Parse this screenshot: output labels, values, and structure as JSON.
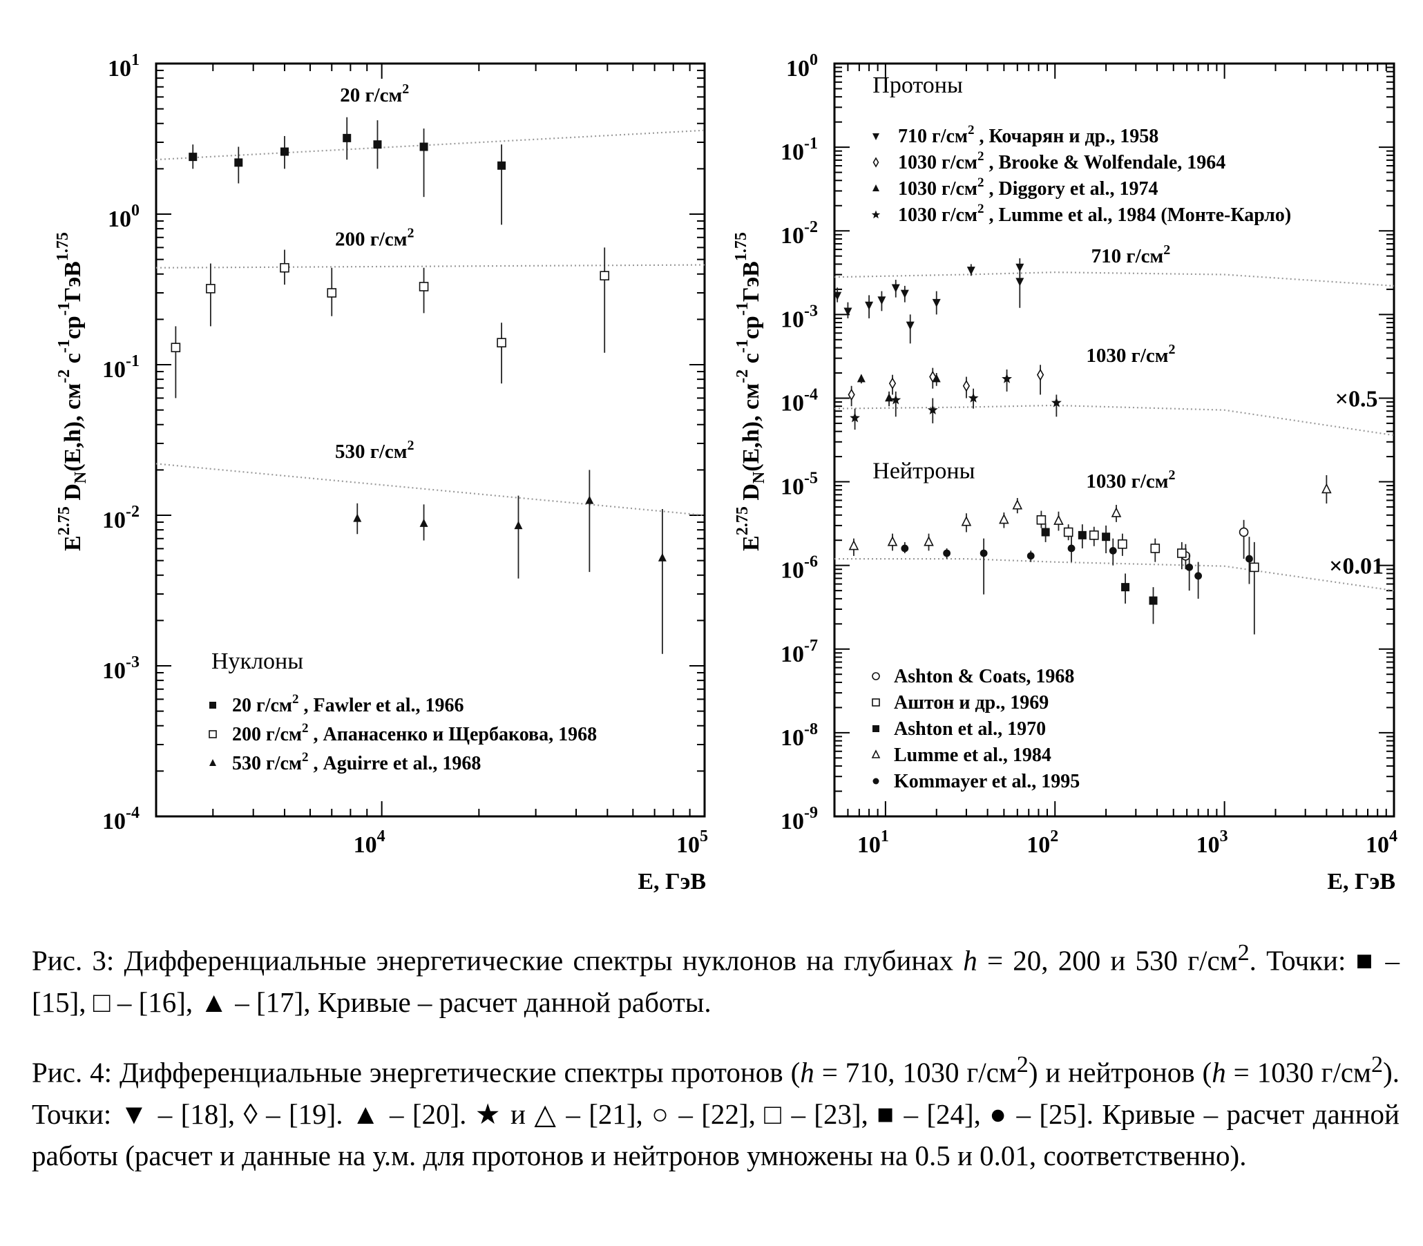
{
  "chart_data": [
    {
      "type": "scatter",
      "xlabel": "E, ГэВ",
      "ylabel_base": "E",
      "ylabel_exp": "2.75",
      "ylabel_mid": " D",
      "ylabel_sub": "N",
      "ylabel_tail": "(E,h),  см",
      "ylabel_u1": "-2",
      "ylabel_u2": " с",
      "ylabel_u3": "-1",
      "ylabel_u4": "ср",
      "ylabel_u5": "-1",
      "ylabel_u6": "ГэВ",
      "ylabel_u7": "1.75",
      "x_log": true,
      "y_log": true,
      "xlim": [
        2000,
        100000
      ],
      "ylim": [
        0.0001,
        10
      ],
      "x_ticks": [
        {
          "base": "10",
          "exp": "4",
          "value": 10000
        },
        {
          "base": "10",
          "exp": "5",
          "value": 100000
        }
      ],
      "y_ticks": [
        {
          "base": "10",
          "exp": "1",
          "value": 10
        },
        {
          "base": "10",
          "exp": "0",
          "value": 1
        },
        {
          "base": "10",
          "exp": "-1",
          "value": 0.1
        },
        {
          "base": "10",
          "exp": "-2",
          "value": 0.01
        },
        {
          "base": "10",
          "exp": "-3",
          "value": 0.001
        },
        {
          "base": "10",
          "exp": "-4",
          "value": 0.0001
        }
      ],
      "annotations": [
        {
          "text": "20 г/см",
          "sup": "2",
          "x": 9500,
          "y": 5.6
        },
        {
          "text": "200 г/см",
          "sup": "2",
          "x": 9500,
          "y": 0.62
        },
        {
          "text": "530 г/см",
          "sup": "2",
          "x": 9500,
          "y": 0.024
        }
      ],
      "legend_title": "Нуклоны",
      "legend": [
        {
          "marker": "square",
          "text_pre": "  20 г/см",
          "sup": "2",
          "text_post": " , Fawler et al., 1966"
        },
        {
          "marker": "open-square",
          "text_pre": "200 г/см",
          "sup": "2",
          "text_post": " , Апанасенко и Щербакова, 1968"
        },
        {
          "marker": "triangle",
          "text_pre": "530 г/см",
          "sup": "2",
          "text_post": " , Aguirre et al., 1968"
        }
      ],
      "curves": [
        {
          "name": "20 г/см2",
          "x": [
            2000,
            100000
          ],
          "y": [
            2.3,
            3.6
          ]
        },
        {
          "name": "200 г/см2",
          "x": [
            2000,
            100000
          ],
          "y": [
            0.44,
            0.46
          ]
        },
        {
          "name": "530 г/см2",
          "x": [
            2000,
            100000
          ],
          "y": [
            0.022,
            0.01
          ]
        }
      ],
      "series": [
        {
          "name": "20 г/см2, Fawler et al., 1966",
          "marker": "square",
          "points": [
            [
              2600,
              2.4,
              2.0,
              2.9
            ],
            [
              3600,
              2.2,
              1.6,
              2.8
            ],
            [
              5000,
              2.6,
              2.0,
              3.3
            ],
            [
              7800,
              3.2,
              2.3,
              4.4
            ],
            [
              9700,
              2.9,
              2.0,
              4.2
            ],
            [
              13500,
              2.8,
              1.3,
              3.7
            ],
            [
              23500,
              2.1,
              0.85,
              2.9
            ]
          ]
        },
        {
          "name": "200 г/см2, Апанасенко и Щербакова, 1968",
          "marker": "open-square",
          "points": [
            [
              2300,
              0.13,
              0.06,
              0.18
            ],
            [
              2950,
              0.32,
              0.18,
              0.47
            ],
            [
              5000,
              0.44,
              0.34,
              0.58
            ],
            [
              7000,
              0.3,
              0.21,
              0.44
            ],
            [
              13500,
              0.33,
              0.22,
              0.44
            ],
            [
              23500,
              0.14,
              0.075,
              0.19
            ],
            [
              49000,
              0.39,
              0.12,
              0.6
            ]
          ]
        },
        {
          "name": "530 г/см2, Aguirre et al., 1968",
          "marker": "triangle",
          "points": [
            [
              8400,
              0.0095,
              0.0075,
              0.012
            ],
            [
              13500,
              0.0088,
              0.0068,
              0.0118
            ],
            [
              26500,
              0.0085,
              0.0038,
              0.0135
            ],
            [
              44000,
              0.0125,
              0.0042,
              0.02
            ],
            [
              74000,
              0.0052,
              0.0012,
              0.011
            ]
          ]
        }
      ]
    },
    {
      "type": "scatter",
      "xlabel": "E, ГэВ",
      "ylabel_base": "E",
      "ylabel_exp": "2.75",
      "ylabel_mid": " D",
      "ylabel_sub": "N",
      "ylabel_tail": "(E,h),  см",
      "ylabel_u1": "-2",
      "ylabel_u2": " с",
      "ylabel_u3": "-1",
      "ylabel_u4": "ср",
      "ylabel_u5": "-1",
      "ylabel_u6": "ГэВ",
      "ylabel_u7": "1.75",
      "x_log": true,
      "y_log": true,
      "xlim": [
        5,
        10000
      ],
      "ylim": [
        1e-09,
        1
      ],
      "x_ticks": [
        {
          "base": "10",
          "exp": "1",
          "value": 10
        },
        {
          "base": "10",
          "exp": "2",
          "value": 100
        },
        {
          "base": "10",
          "exp": "3",
          "value": 1000
        },
        {
          "base": "10",
          "exp": "4",
          "value": 10000
        }
      ],
      "y_ticks": [
        {
          "base": "10",
          "exp": "0",
          "value": 1
        },
        {
          "base": "10",
          "exp": "-1",
          "value": 0.1
        },
        {
          "base": "10",
          "exp": "-2",
          "value": 0.01
        },
        {
          "base": "10",
          "exp": "-3",
          "value": 0.001
        },
        {
          "base": "10",
          "exp": "-4",
          "value": 0.0001
        },
        {
          "base": "10",
          "exp": "-5",
          "value": 1e-05
        },
        {
          "base": "10",
          "exp": "-6",
          "value": 1e-06
        },
        {
          "base": "10",
          "exp": "-7",
          "value": 1e-07
        },
        {
          "base": "10",
          "exp": "-8",
          "value": 1e-08
        },
        {
          "base": "10",
          "exp": "-9",
          "value": 1e-09
        }
      ],
      "annotations": [
        {
          "text": "710 г/см",
          "sup": "2",
          "x": 280,
          "y": 0.0042
        },
        {
          "text": "1030 г/см",
          "sup": "2",
          "x": 280,
          "y": 0.00027
        },
        {
          "text": "1030 г/см",
          "sup": "2",
          "x": 280,
          "y": 8.5e-06
        }
      ],
      "big_annotations": [
        {
          "text": "×0.5",
          "x": 6000,
          "y": 0.0001
        },
        {
          "text": "×0.01",
          "x": 6000,
          "y": 1e-06
        }
      ],
      "section_labels": [
        {
          "text": "Протоны",
          "x": 8.4,
          "y": 0.45
        },
        {
          "text": "Нейтроны",
          "x": 8.4,
          "y": 1.1e-05
        }
      ],
      "legend_protons": [
        {
          "marker": "down-triangle",
          "text_pre": "710 г/см",
          "sup": "2",
          "text_post": " , Кочарян и др., 1958"
        },
        {
          "marker": "diamond",
          "text_pre": "1030 г/см",
          "sup": "2",
          "text_post": " , Brooke & Wolfendale, 1964"
        },
        {
          "marker": "triangle",
          "text_pre": "1030 г/см",
          "sup": "2",
          "text_post": " , Diggory et al., 1974"
        },
        {
          "marker": "star",
          "text_pre": "1030 г/см",
          "sup": "2",
          "text_post": " , Lumme et al., 1984 (Монте-Карло)"
        }
      ],
      "legend_neutrons": [
        {
          "marker": "open-circle",
          "text": "Ashton & Coats, 1968"
        },
        {
          "marker": "open-square",
          "text": "Аштон и др., 1969"
        },
        {
          "marker": "square",
          "text": "Ashton et al., 1970"
        },
        {
          "marker": "open-triangle",
          "text": "Lumme et al., 1984"
        },
        {
          "marker": "dot",
          "text": "Kommayer et al., 1995"
        }
      ],
      "curves": [
        {
          "name": "710 г/см2",
          "x": [
            5,
            30,
            100,
            1000,
            10000
          ],
          "y": [
            0.0028,
            0.003,
            0.0032,
            0.003,
            0.0022
          ]
        },
        {
          "name": "1030 г/см2 протоны ×0.5",
          "x": [
            5,
            30,
            100,
            1000,
            10000
          ],
          "y": [
            7.5e-05,
            7.8e-05,
            8.2e-05,
            7.2e-05,
            3.6e-05
          ]
        },
        {
          "name": "1030 г/см2 нейтроны ×0.01",
          "x": [
            5,
            30,
            100,
            1000,
            10000
          ],
          "y": [
            1.2e-06,
            1.2e-06,
            1.1e-06,
            9.8e-07,
            5e-07
          ]
        }
      ],
      "series": [
        {
          "name": "710 г/см2, Кочарян и др., 1958",
          "marker": "down-triangle",
          "points": [
            [
              5.2,
              0.0017,
              0.0014,
              0.0021
            ],
            [
              6,
              0.0011,
              0.0009,
              0.0014
            ],
            [
              8,
              0.0013,
              0.0009,
              0.0017
            ],
            [
              9.5,
              0.0015,
              0.0011,
              0.0019
            ],
            [
              11.5,
              0.0021,
              0.0016,
              0.0026
            ],
            [
              13,
              0.0018,
              0.0014,
              0.0022
            ],
            [
              14,
              0.00075,
              0.00045,
              0.001
            ],
            [
              20,
              0.0014,
              0.001,
              0.0019
            ],
            [
              32,
              0.0034,
              0.0029,
              0.004
            ],
            [
              62,
              0.0025,
              0.0012,
              0.0032
            ],
            [
              62,
              0.0037,
              0.0028,
              0.0047
            ]
          ]
        },
        {
          "name": "1030 г/см2, Brooke & Wolfendale, 1964",
          "marker": "diamond",
          "points": [
            [
              6.3,
              0.00011,
              8e-05,
              0.00014
            ],
            [
              11,
              0.00015,
              0.00011,
              0.00019
            ],
            [
              19,
              0.00018,
              0.00013,
              0.00023
            ],
            [
              30,
              0.00014,
              0.0001,
              0.00018
            ],
            [
              82,
              0.00019,
              0.00011,
              0.00025
            ]
          ]
        },
        {
          "name": "1030 г/см2, Diggory et al., 1974",
          "marker": "triangle",
          "points": [
            [
              7.2,
              0.00017,
              0.00015,
              0.00019
            ],
            [
              10.5,
              0.0001,
              8e-05,
              0.00012
            ],
            [
              20,
              0.00017,
              0.00014,
              0.0002
            ]
          ]
        },
        {
          "name": "1030 г/см2, Lumme et al., 1984 (Монте-Карло)",
          "marker": "star",
          "points": [
            [
              6.6,
              5.8e-05,
              4.2e-05,
              7.5e-05
            ],
            [
              11.5,
              9.5e-05,
              6e-05,
              0.00012
            ],
            [
              19,
              7.2e-05,
              5e-05,
              0.0001
            ],
            [
              33,
              0.0001,
              7.5e-05,
              0.00013
            ],
            [
              52,
              0.00017,
              0.00012,
              0.00022
            ],
            [
              102,
              8.8e-05,
              6e-05,
              0.00011
            ]
          ]
        },
        {
          "name": "Ashton & Coats, 1968",
          "marker": "open-circle",
          "points": [
            [
              590,
              1.3e-06,
              9e-07,
              1.8e-06
            ],
            [
              1300,
              2.5e-06,
              1.2e-06,
              3.5e-06
            ]
          ]
        },
        {
          "name": "Аштон и др., 1969",
          "marker": "open-square",
          "points": [
            [
              83,
              3.5e-06,
              2.8e-06,
              4.5e-06
            ],
            [
              120,
              2.5e-06,
              2e-06,
              3.1e-06
            ],
            [
              170,
              2.3e-06,
              1.7e-06,
              2.9e-06
            ],
            [
              250,
              1.8e-06,
              1.3e-06,
              2.4e-06
            ],
            [
              390,
              1.6e-06,
              1.1e-06,
              2.1e-06
            ],
            [
              560,
              1.4e-06,
              9e-07,
              1.9e-06
            ],
            [
              1500,
              9.5e-07,
              1.5e-07,
              1.9e-06
            ]
          ]
        },
        {
          "name": "Ashton et al., 1970",
          "marker": "square",
          "points": [
            [
              88,
              2.5e-06,
              1.9e-06,
              3.2e-06
            ],
            [
              145,
              2.3e-06,
              1.6e-06,
              3.1e-06
            ],
            [
              200,
              2.2e-06,
              1.4e-06,
              3e-06
            ],
            [
              260,
              5.5e-07,
              3.5e-07,
              8e-07
            ],
            [
              380,
              3.8e-07,
              2e-07,
              5.5e-07
            ]
          ]
        },
        {
          "name": "Lumme et al., 1984",
          "marker": "open-triangle",
          "points": [
            [
              6.5,
              1.7e-06,
              1.3e-06,
              2.1e-06
            ],
            [
              11,
              1.9e-06,
              1.5e-06,
              2.4e-06
            ],
            [
              18,
              1.9e-06,
              1.5e-06,
              2.4e-06
            ],
            [
              30,
              3.3e-06,
              2.5e-06,
              4.2e-06
            ],
            [
              50,
              3.5e-06,
              2.8e-06,
              4.3e-06
            ],
            [
              60,
              5.2e-06,
              4.2e-06,
              6.4e-06
            ],
            [
              105,
              3.4e-06,
              2.6e-06,
              4.4e-06
            ],
            [
              230,
              4.2e-06,
              3.3e-06,
              5.3e-06
            ],
            [
              4000,
              8.1e-06,
              5.5e-06,
              1.2e-05
            ]
          ]
        },
        {
          "name": "Kommayer et al., 1995",
          "marker": "dot",
          "points": [
            [
              13,
              1.6e-06,
              1.4e-06,
              1.9e-06
            ],
            [
              23,
              1.4e-06,
              1.2e-06,
              1.6e-06
            ],
            [
              38,
              1.4e-06,
              4.5e-07,
              2.1e-06
            ],
            [
              72,
              1.3e-06,
              1.1e-06,
              1.5e-06
            ],
            [
              125,
              1.6e-06,
              1.1e-06,
              2.2e-06
            ],
            [
              220,
              1.5e-06,
              1e-06,
              2.1e-06
            ],
            [
              620,
              9.5e-07,
              5e-07,
              1.4e-06
            ],
            [
              700,
              7.5e-07,
              4e-07,
              1.1e-06
            ],
            [
              1400,
              1.2e-06,
              6e-07,
              2.2e-06
            ]
          ]
        }
      ]
    }
  ],
  "captions": {
    "fig3_pre": "Рис. 3: Дифференциальные энергетические спектры нуклонов на глубинах ",
    "fig3_h": "h",
    "fig3_eq": " = 20, 200 и 530 г/см",
    "fig3_sup": "2",
    "fig3_points": ". Точки: ",
    "fig3_sq": "■",
    "fig3_r15": " – [15], ",
    "fig3_osq": "□",
    "fig3_r16": " – [16], ",
    "fig3_tri": "▲",
    "fig3_r17": " – [17], Кривые – расчет данной работы.",
    "fig4_pre": "Рис. 4: Дифференциальные энергетические спектры протонов (",
    "fig4_h1": "h",
    "fig4_eq1": " = 710, 1030 г/см",
    "fig4_sup1": "2",
    "fig4_mid": ") и нейтронов (",
    "fig4_h2": "h",
    "fig4_eq2": " = 1030 г/см",
    "fig4_sup2": "2",
    "fig4_points": "). Точки: ",
    "fig4_dtri": "▼",
    "fig4_r18": " – [18], ",
    "fig4_dia": "◊",
    "fig4_r19": " – [19]. ",
    "fig4_tri": "▲",
    "fig4_r20": " – [20]. ",
    "fig4_star": "★",
    "fig4_and": " и ",
    "fig4_otri": "△",
    "fig4_r21": " – [21], ",
    "fig4_ocir": "○",
    "fig4_r22": " – [22], ",
    "fig4_osq": "□",
    "fig4_r23": " – [23], ",
    "fig4_sq": "■",
    "fig4_r24": " – [24], ",
    "fig4_dot": "●",
    "fig4_r25": " – [25]. Кривые – расчет данной работы (расчет и данные на у.м. для протонов и нейтронов умножены на 0.5 и 0.01, соответственно)."
  }
}
